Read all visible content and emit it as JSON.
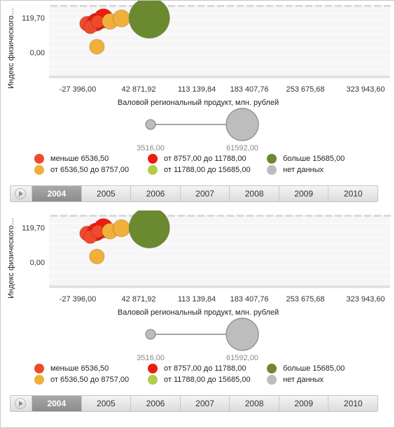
{
  "chart_data": [
    {
      "type": "scatter",
      "variant": "bubble",
      "xlabel": "Валовой региональный продукт, млн. рублей",
      "ylabel": "Индекс физического…",
      "x_ticks": [
        "-27 396,00",
        "42 871,92",
        "113 139,84",
        "183 407,76",
        "253 675,68",
        "323 943,60"
      ],
      "y_ticks": [
        "119,70",
        "0,00"
      ],
      "xlim": [
        -27396,
        323943.6
      ],
      "ylim": [
        -80,
        165
      ],
      "points": [
        {
          "x": -16000,
          "y": 100,
          "size": 8200,
          "color": "#f04a2c"
        },
        {
          "x": -5000,
          "y": 105,
          "size": 12000,
          "color": "#ee1c0e"
        },
        {
          "x": 4000,
          "y": 118,
          "size": 14000,
          "color": "#ee1c0e"
        },
        {
          "x": -12000,
          "y": 88,
          "size": 6700,
          "color": "#f04a2c"
        },
        {
          "x": -3000,
          "y": 107,
          "size": 6300,
          "color": "#f04a2c"
        },
        {
          "x": -4000,
          "y": 20,
          "size": 8300,
          "color": "#f0b03a"
        },
        {
          "x": 12000,
          "y": 108,
          "size": 9500,
          "color": "#f0b03a"
        },
        {
          "x": 26000,
          "y": 118,
          "size": 11000,
          "color": "#f0b03a"
        },
        {
          "x": 60000,
          "y": 119.7,
          "size": 61592,
          "color": "#6b8a2f"
        }
      ],
      "size_legend": {
        "min_label": "3516,00",
        "max_label": "61592,00"
      },
      "legend": [
        {
          "label": "меньше 6536,50",
          "color": "#f04a2c"
        },
        {
          "label": "от 8757,00 до 11788,00",
          "color": "#ee1c0e"
        },
        {
          "label": "больше 15685,00",
          "color": "#6b8a2f"
        },
        {
          "label": "от 6536,50 до 8757,00",
          "color": "#f0b03a"
        },
        {
          "label": "от 11788,00 до 15685,00",
          "color": "#b2cc48"
        },
        {
          "label": "нет данных",
          "color": "#bdbdbd"
        }
      ],
      "legend_position": "bottom",
      "grid": true
    },
    {
      "type": "scatter",
      "variant": "bubble",
      "xlabel": "Валовой региональный продукт, млн. рублей",
      "ylabel": "Индекс физического…",
      "x_ticks": [
        "-27 396,00",
        "42 871,92",
        "113 139,84",
        "183 407,76",
        "253 675,68",
        "323 943,60"
      ],
      "y_ticks": [
        "119,70",
        "0,00"
      ],
      "xlim": [
        -27396,
        323943.6
      ],
      "ylim": [
        -80,
        165
      ],
      "points": [
        {
          "x": -16000,
          "y": 100,
          "size": 8200,
          "color": "#f04a2c"
        },
        {
          "x": -5000,
          "y": 105,
          "size": 12000,
          "color": "#ee1c0e"
        },
        {
          "x": 4000,
          "y": 118,
          "size": 14000,
          "color": "#ee1c0e"
        },
        {
          "x": -12000,
          "y": 88,
          "size": 6700,
          "color": "#f04a2c"
        },
        {
          "x": -3000,
          "y": 107,
          "size": 6300,
          "color": "#f04a2c"
        },
        {
          "x": -4000,
          "y": 20,
          "size": 8300,
          "color": "#f0b03a"
        },
        {
          "x": 12000,
          "y": 108,
          "size": 9500,
          "color": "#f0b03a"
        },
        {
          "x": 26000,
          "y": 118,
          "size": 11000,
          "color": "#f0b03a"
        },
        {
          "x": 60000,
          "y": 119.7,
          "size": 61592,
          "color": "#6b8a2f"
        }
      ],
      "size_legend": {
        "min_label": "3516,00",
        "max_label": "61592,00"
      },
      "legend": [
        {
          "label": "меньше 6536,50",
          "color": "#f04a2c"
        },
        {
          "label": "от 8757,00 до 11788,00",
          "color": "#ee1c0e"
        },
        {
          "label": "больше 15685,00",
          "color": "#6b8a2f"
        },
        {
          "label": "от 6536,50 до 8757,00",
          "color": "#f0b03a"
        },
        {
          "label": "от 11788,00 до 15685,00",
          "color": "#b2cc48"
        },
        {
          "label": "нет данных",
          "color": "#bdbdbd"
        }
      ],
      "legend_position": "bottom",
      "grid": true
    }
  ],
  "timeline": {
    "years": [
      "2004",
      "2005",
      "2006",
      "2007",
      "2008",
      "2009",
      "2010"
    ],
    "selected": "2004"
  }
}
